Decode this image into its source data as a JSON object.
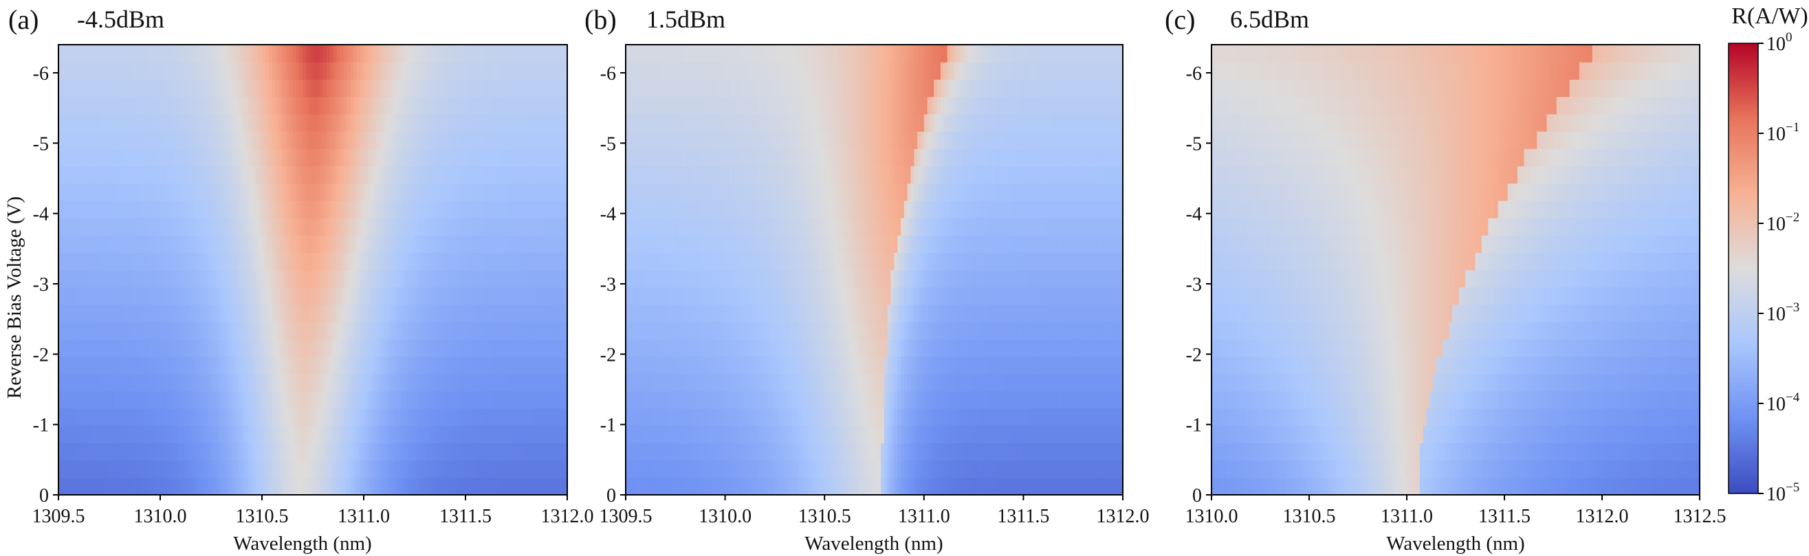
{
  "chart_data": {
    "type": "heatmap",
    "colorbar": {
      "label": "R(A/W)",
      "scale": "log",
      "range": [
        1e-05,
        1.0
      ],
      "ticks": [
        {
          "value": 1.0,
          "base": "10",
          "exp": "0"
        },
        {
          "value": 0.1,
          "base": "10",
          "exp": "−1"
        },
        {
          "value": 0.01,
          "base": "10",
          "exp": "−2"
        },
        {
          "value": 0.001,
          "base": "10",
          "exp": "−3"
        },
        {
          "value": 0.0001,
          "base": "10",
          "exp": "−4"
        },
        {
          "value": 1e-05,
          "base": "10",
          "exp": "−5"
        }
      ],
      "colormap": "coolwarm",
      "colors": [
        "#3b4cc0",
        "#6f92f3",
        "#aac7fd",
        "#dddcdc",
        "#f7b194",
        "#e7745b",
        "#b40426"
      ]
    },
    "panels": [
      {
        "tag": "(a)",
        "title": "-4.5dBm",
        "xlabel": "Wavelength (nm)",
        "ylabel": "Reverse Bias Voltage (V)",
        "xlim": [
          1309.5,
          1312.0
        ],
        "ylim": [
          0,
          -6.4
        ],
        "xticks": [
          "1309.5",
          "1310.0",
          "1310.5",
          "1311.0",
          "1311.5",
          "1312.0"
        ],
        "yticks": [
          "0",
          "-1",
          "-2",
          "-3",
          "-4",
          "-5",
          "-6"
        ],
        "kind": "symmetric",
        "center_start": 1310.69,
        "center_end": 1310.77,
        "sigma": 0.33,
        "peak_bottom": 0.003,
        "peak_top": 0.4,
        "floor_bottom": 3e-05,
        "floor_top": 0.0012,
        "ripple": 0.0
      },
      {
        "tag": "(b)",
        "title": "1.5dBm",
        "xlabel": "Wavelength (nm)",
        "ylabel": "",
        "xlim": [
          1309.5,
          1312.0
        ],
        "ylim": [
          0,
          -6.4
        ],
        "xticks": [
          "1309.5",
          "1310.0",
          "1310.5",
          "1311.0",
          "1311.5",
          "1312.0"
        ],
        "yticks": [
          "0",
          "-1",
          "-2",
          "-3",
          "-4",
          "-5",
          "-6"
        ],
        "kind": "asymmetric",
        "edge_bottom": 1310.79,
        "edge_top": 1311.13,
        "sigma_left": 0.42,
        "sigma_right": 0.11,
        "peak_bottom": 0.003,
        "peak_top": 0.15,
        "floor_bottom": 3e-05,
        "floor_top": 0.0012,
        "ripple": 0.0
      },
      {
        "tag": "(c)",
        "title": "6.5dBm",
        "xlabel": "Wavelength (nm)",
        "ylabel": "",
        "xlim": [
          1310.0,
          1312.5
        ],
        "ylim": [
          0,
          -6.4
        ],
        "xticks": [
          "1310.0",
          "1310.5",
          "1311.0",
          "1311.5",
          "1312.0",
          "1312.5"
        ],
        "yticks": [
          "0",
          "-1",
          "-2",
          "-3",
          "-4",
          "-5",
          "-6"
        ],
        "kind": "flat",
        "edge_bottom": 1311.06,
        "edge_top": 1311.98,
        "sigma_left": 0.45,
        "sigma_right": 0.55,
        "peak_bottom": 0.005,
        "peak_top": 0.1,
        "floor_bottom": 3e-05,
        "floor_top": 0.0015,
        "ripple": 0.0
      }
    ]
  }
}
